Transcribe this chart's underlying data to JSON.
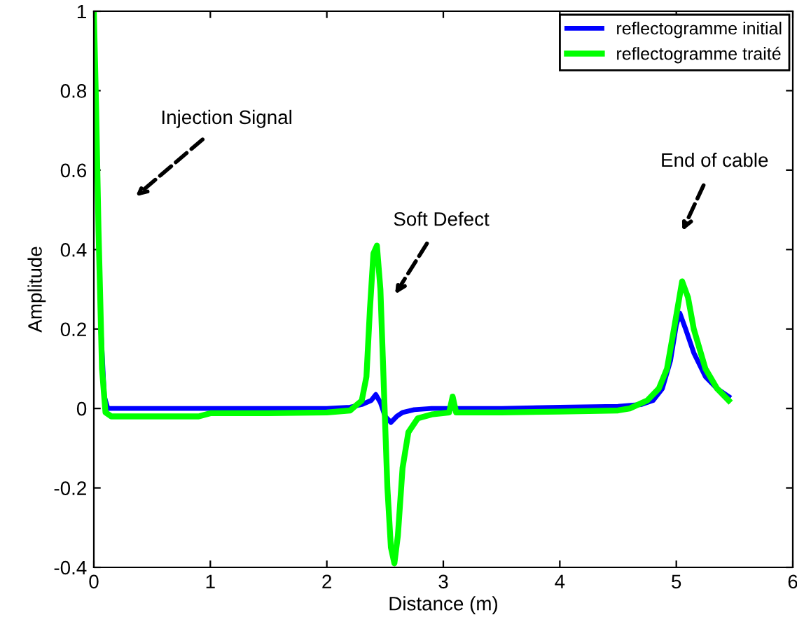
{
  "chart_data": {
    "type": "line",
    "xlabel": "Distance (m)",
    "ylabel": "Amplitude",
    "xlim": [
      0,
      6
    ],
    "ylim": [
      -0.4,
      1
    ],
    "xticks": [
      0,
      1,
      2,
      3,
      4,
      5,
      6
    ],
    "yticks": [
      -0.4,
      -0.2,
      0,
      0.2,
      0.4,
      0.6,
      0.8,
      1
    ],
    "grid": false,
    "legend": "top right",
    "marker": "none",
    "line_style": "solid",
    "series": [
      {
        "name": "reflectogramme initial",
        "color": "#0000ff",
        "x": [
          0.06,
          0.09,
          0.12,
          0.5,
          1.0,
          1.5,
          2.0,
          2.2,
          2.3,
          2.38,
          2.42,
          2.46,
          2.5,
          2.55,
          2.6,
          2.65,
          2.75,
          2.9,
          3.05,
          3.11,
          3.5,
          4.0,
          4.5,
          4.7,
          4.8,
          4.88,
          4.95,
          5.0,
          5.03,
          5.08,
          5.15,
          5.25,
          5.35,
          5.45
        ],
        "values": [
          0.2,
          0.03,
          0,
          0,
          0,
          0,
          0,
          0.003,
          0.01,
          0.02,
          0.035,
          0.015,
          -0.02,
          -0.035,
          -0.02,
          -0.01,
          -0.003,
          0,
          0,
          0,
          0,
          0.003,
          0.005,
          0.01,
          0.02,
          0.05,
          0.12,
          0.21,
          0.24,
          0.2,
          0.14,
          0.08,
          0.05,
          0.03
        ]
      },
      {
        "name": "reflectogramme traité",
        "color": "#00ff00",
        "x": [
          0,
          0.02,
          0.04,
          0.07,
          0.1,
          0.15,
          0.5,
          0.9,
          1.0,
          1.5,
          2.0,
          2.2,
          2.3,
          2.34,
          2.37,
          2.4,
          2.43,
          2.46,
          2.49,
          2.52,
          2.55,
          2.58,
          2.61,
          2.65,
          2.7,
          2.78,
          2.9,
          3.05,
          3.08,
          3.11,
          3.5,
          4.0,
          4.5,
          4.6,
          4.75,
          4.85,
          4.92,
          4.98,
          5.05,
          5.1,
          5.15,
          5.25,
          5.35,
          5.45
        ],
        "values": [
          1,
          0.75,
          0.45,
          0.1,
          -0.01,
          -0.02,
          -0.02,
          -0.02,
          -0.012,
          -0.012,
          -0.01,
          -0.005,
          0.02,
          0.08,
          0.25,
          0.39,
          0.41,
          0.3,
          0.05,
          -0.2,
          -0.35,
          -0.39,
          -0.32,
          -0.15,
          -0.06,
          -0.025,
          -0.015,
          -0.01,
          0.03,
          -0.01,
          -0.01,
          -0.008,
          -0.005,
          0,
          0.02,
          0.05,
          0.1,
          0.2,
          0.32,
          0.28,
          0.2,
          0.1,
          0.05,
          0.02
        ]
      }
    ],
    "annotations": [
      "Injection Signal",
      "Soft Defect",
      "End of cable"
    ]
  }
}
